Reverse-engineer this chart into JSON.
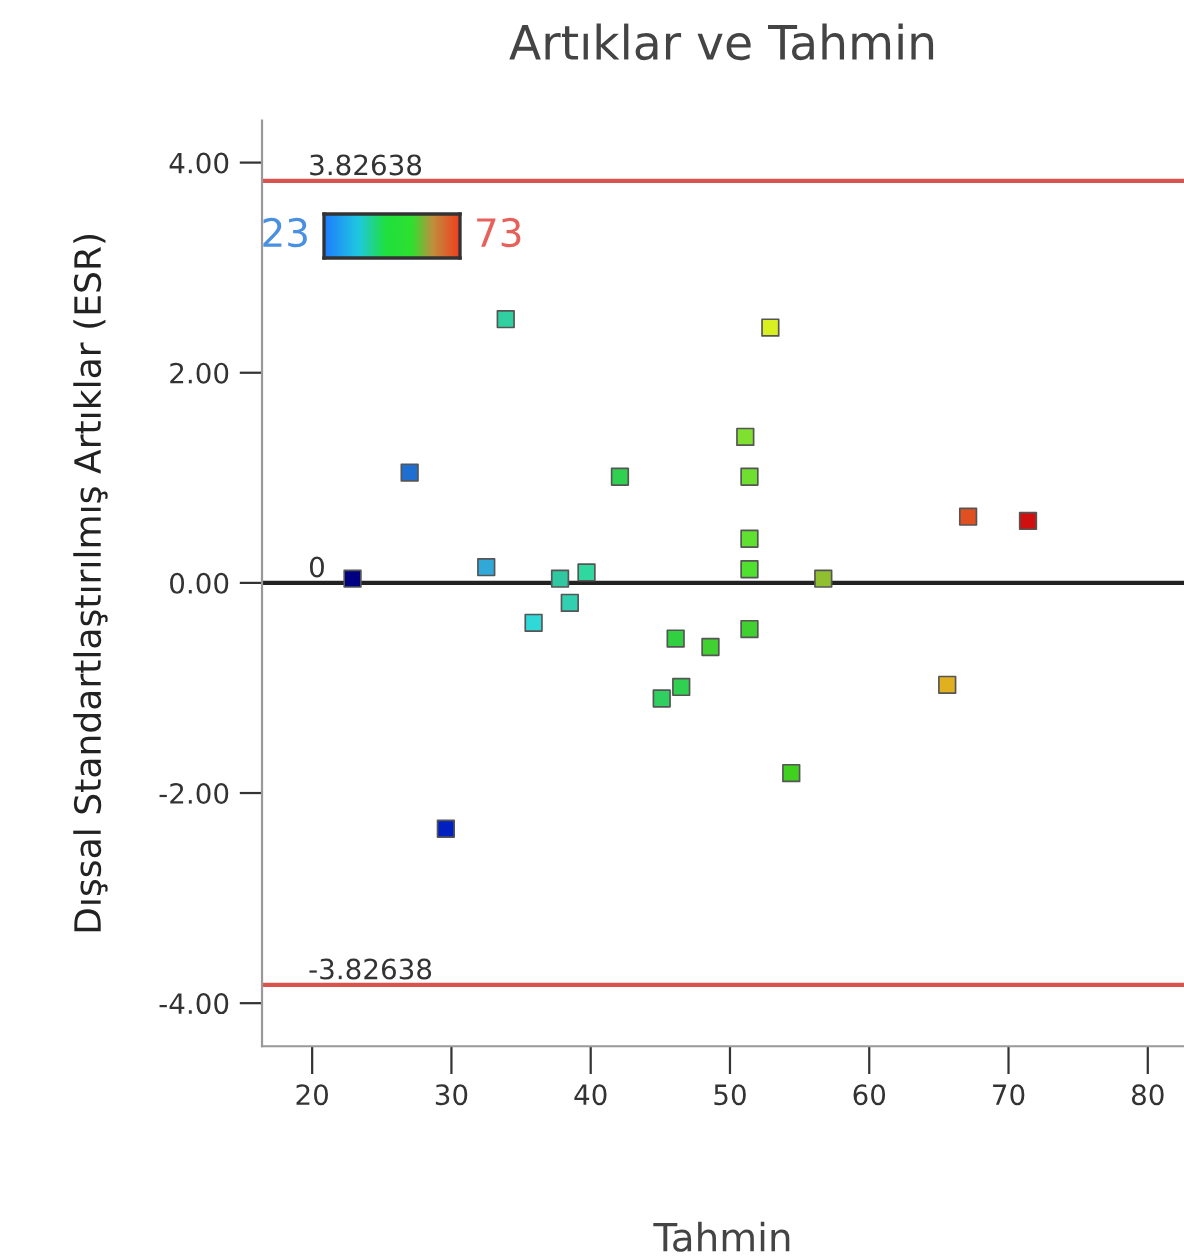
{
  "chart_data": {
    "type": "scatter",
    "title": "Artıklar ve Tahmin",
    "xlabel": "Tahmin",
    "ylabel": "Dışsal Standartlaştırılmış Artıklar (ESR)",
    "x": [
      22.9,
      27.0,
      29.6,
      32.5,
      33.9,
      35.9,
      37.8,
      38.5,
      39.7,
      42.1,
      45.1,
      46.1,
      46.5,
      48.6,
      51.1,
      51.4,
      51.4,
      51.4,
      51.4,
      52.9,
      54.4,
      56.7,
      65.6,
      67.1,
      71.4
    ],
    "values": [
      0.04,
      1.05,
      -2.34,
      0.15,
      2.51,
      -0.38,
      0.04,
      -0.19,
      0.1,
      1.01,
      -1.1,
      -0.53,
      -0.99,
      -0.61,
      1.39,
      1.01,
      0.42,
      0.13,
      -0.44,
      2.43,
      -1.81,
      0.04,
      -0.97,
      0.63,
      0.59
    ],
    "colors": [
      "#000080",
      "#1f6fd0",
      "#0020c0",
      "#30a8d8",
      "#30d0a0",
      "#30d8d8",
      "#30c8a0",
      "#30d0b0",
      "#30d8a0",
      "#30d050",
      "#30d060",
      "#30d040",
      "#30d050",
      "#40d030",
      "#80e030",
      "#70e030",
      "#60e030",
      "#50e030",
      "#40d030",
      "#d8f020",
      "#40d020",
      "#90c030",
      "#e0b020",
      "#e05020",
      "#d01010"
    ],
    "annotations": [
      "23",
      "73"
    ],
    "xlim": [
      16.4,
      82.6
    ],
    "ylim": [
      -4.41,
      4.4
    ],
    "xticks": [
      20,
      30,
      40,
      50,
      60,
      70,
      80
    ],
    "yticks": [
      {
        "value": 4,
        "label": "4.00"
      },
      {
        "value": 2,
        "label": "2.00"
      },
      {
        "value": 0,
        "label": "0.00"
      },
      {
        "value": -2,
        "label": "-2.00"
      },
      {
        "value": -4,
        "label": "-4.00"
      }
    ],
    "ref_lines": [
      {
        "axis": "y",
        "value": 3.82638,
        "label": "3.82638",
        "color": "#d9534f"
      },
      {
        "axis": "y",
        "value": 0,
        "label": "0",
        "color": "#222222"
      },
      {
        "axis": "y",
        "value": -3.82638,
        "label": "-3.82638",
        "color": "#d9534f"
      }
    ],
    "marker": "square",
    "grid": false,
    "legend": false
  }
}
